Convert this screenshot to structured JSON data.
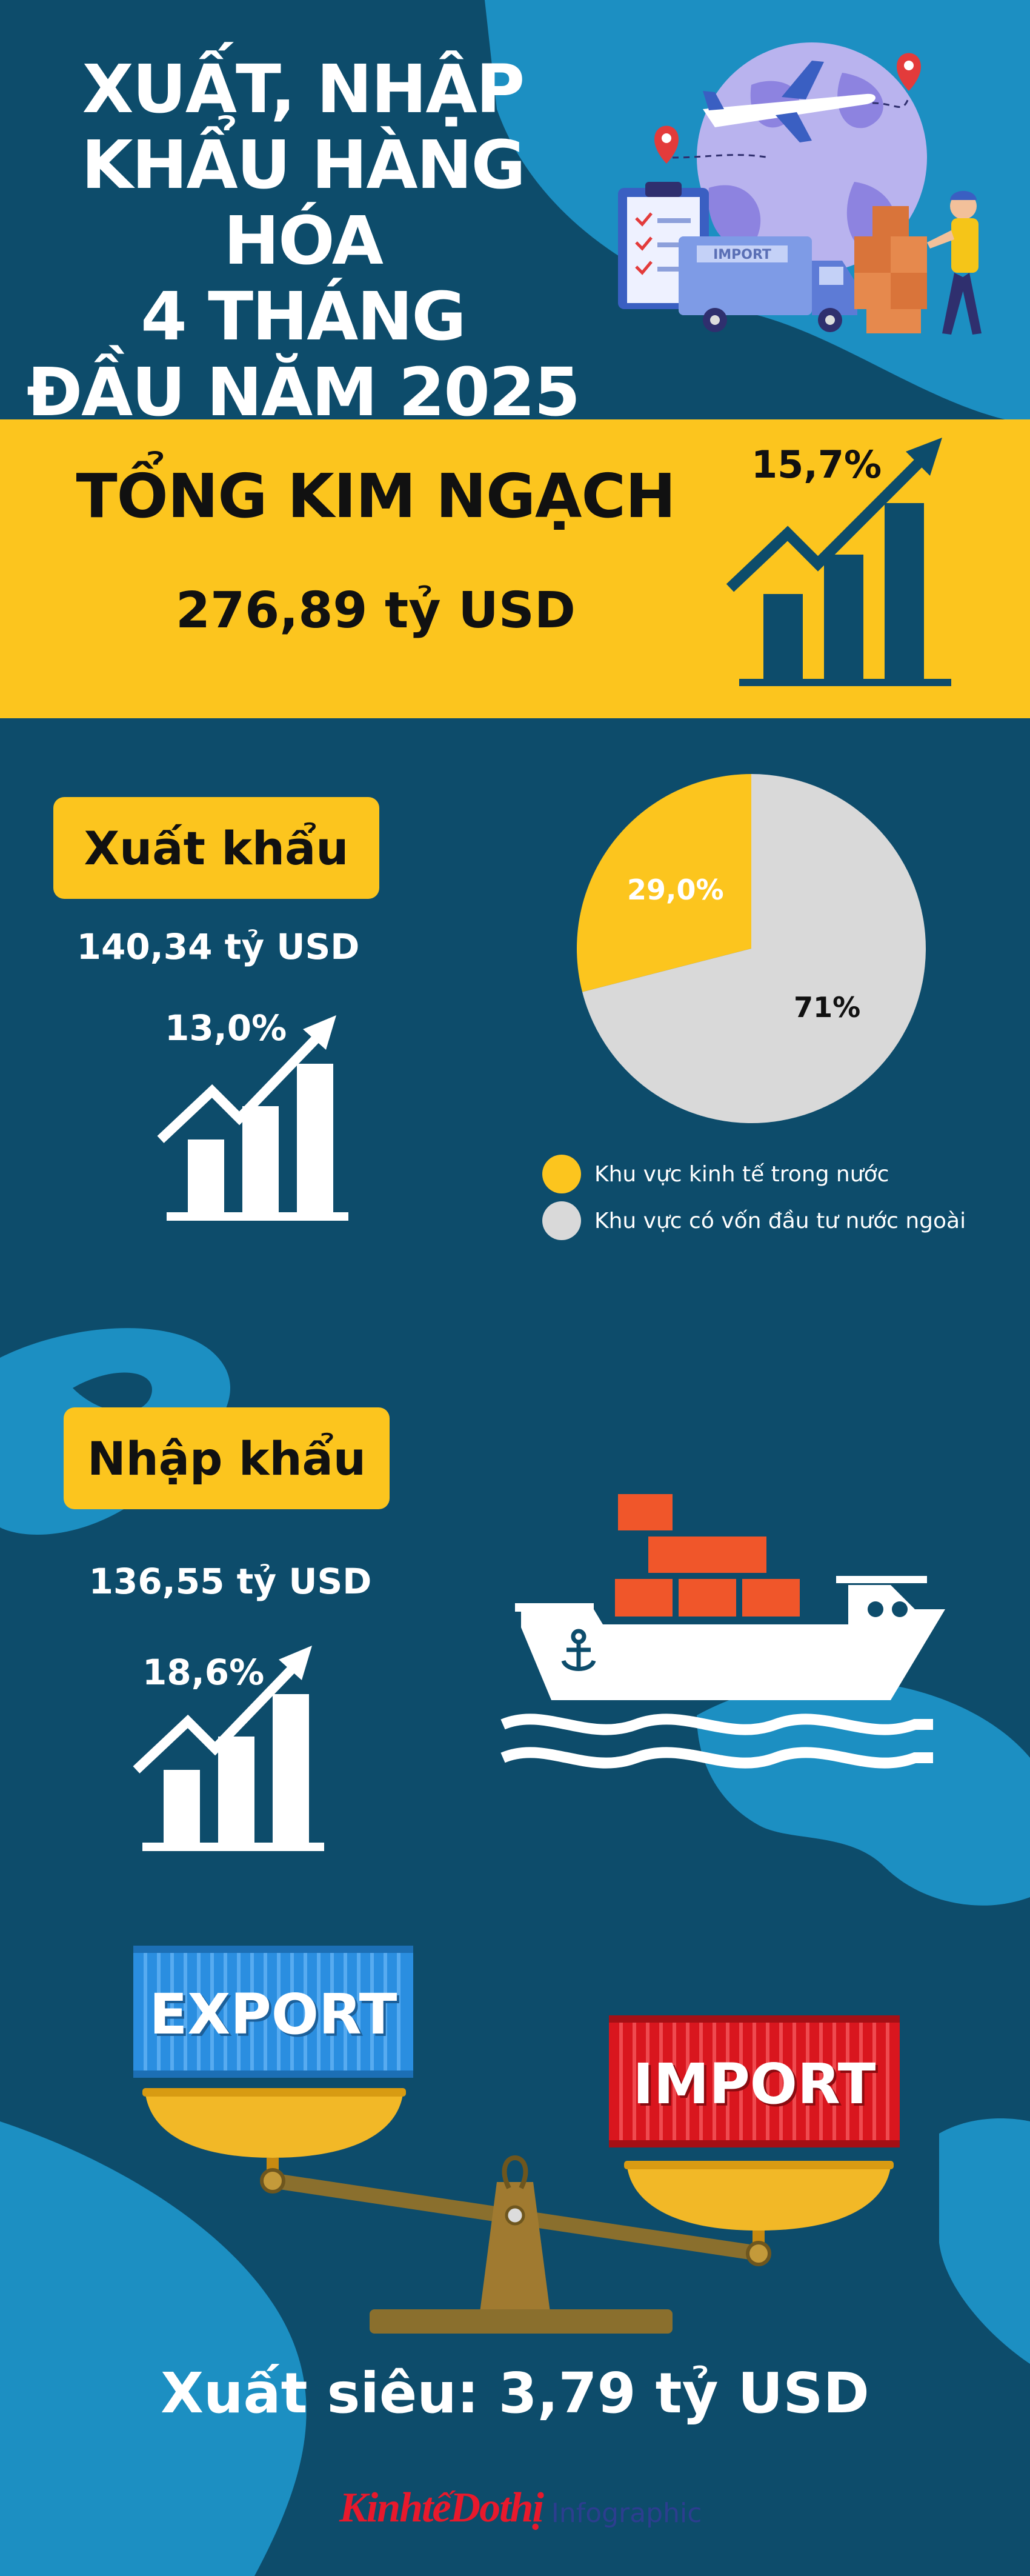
{
  "title": {
    "lines": [
      "XUẤT, NHẬP",
      "KHẨU HÀNG HÓA",
      "4 THÁNG",
      "ĐẦU NĂM 2025"
    ]
  },
  "total": {
    "label": "TỔNG KIM NGẠCH",
    "value": "276,89 tỷ USD",
    "growth": "15,7%"
  },
  "export": {
    "label": "Xuất khẩu",
    "value": "140,34 tỷ USD",
    "growth": "13,0%"
  },
  "import": {
    "label": "Nhập khẩu",
    "value": "136,55 tỷ USD",
    "growth": "18,6%"
  },
  "chart_data": {
    "type": "pie",
    "slices": [
      {
        "name": "Khu vực kinh tế trong nước",
        "value": 29.0,
        "label": "29,0%",
        "color": "#fcc51e"
      },
      {
        "name": "Khu vực có vốn đầu tư nước ngoài",
        "value": 71.0,
        "label": "71%",
        "color": "#d9d9d9"
      }
    ],
    "legend_position": "bottom"
  },
  "scale": {
    "export_label": "EXPORT",
    "import_label": "IMPORT"
  },
  "surplus": "Xuất siêu: 3,79 tỷ USD",
  "footer": {
    "brand": "KinhtếDothị",
    "section": "Infographic"
  },
  "colors": {
    "background": "#0d4c6b",
    "accent_blue": "#1c8fc2",
    "yellow": "#fcc51e",
    "orange": "#f0562a",
    "red_brand": "#e8192c"
  }
}
